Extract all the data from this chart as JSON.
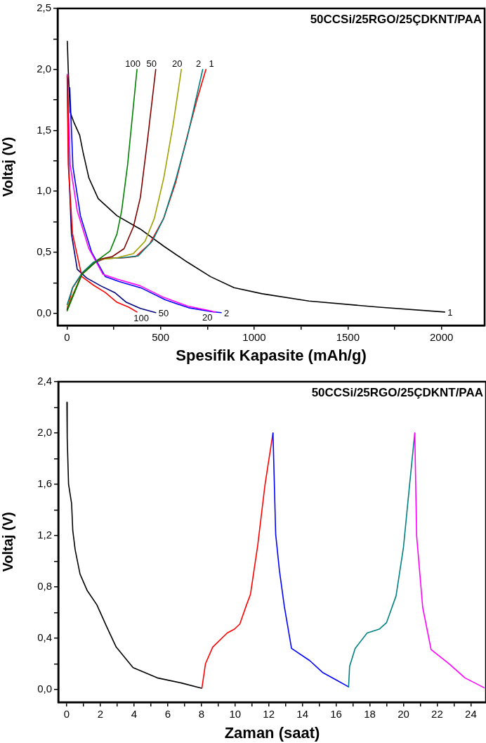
{
  "chart_data": [
    {
      "type": "line",
      "xlabel": "Spesifik Kapasite (mAh/g)",
      "ylabel": "Voltaj (V)",
      "annotations": [
        "50CCSi/25RGO/25ÇDKNT/PAA"
      ],
      "xlim": [
        -50,
        2230
      ],
      "ylim": [
        -0.1,
        2.5
      ],
      "xticks": [
        0,
        {
          "value": 250,
          "label": null
        },
        500,
        {
          "value": 750,
          "label": null
        },
        1000,
        {
          "value": 1250,
          "label": null
        },
        1500,
        {
          "value": 1750,
          "label": null
        },
        2000
      ],
      "yticks": [
        {
          "value": 0,
          "label": "0,0"
        },
        {
          "value": 0.25,
          "label": null
        },
        {
          "value": 0.5,
          "label": "0,5"
        },
        {
          "value": 0.75,
          "label": null
        },
        {
          "value": 1,
          "label": "1,0"
        },
        {
          "value": 1.25,
          "label": null
        },
        {
          "value": 1.5,
          "label": "1,5"
        },
        {
          "value": 1.75,
          "label": null
        },
        {
          "value": 2,
          "label": "2,0"
        },
        {
          "value": 2.25,
          "label": null
        },
        {
          "value": 2.5,
          "label": "2,5"
        }
      ],
      "grid": false,
      "series": [
        {
          "name": "1",
          "color": "#000000",
          "x": [
            2,
            7,
            17,
            36,
            68,
            86,
            117,
            167,
            267,
            392,
            517,
            642,
            767,
            892,
            1042,
            1292,
            1667,
            2017
          ],
          "values": [
            2.23,
            1.99,
            1.65,
            1.57,
            1.46,
            1.32,
            1.11,
            0.94,
            0.8,
            0.69,
            0.55,
            0.42,
            0.3,
            0.21,
            0.16,
            0.1,
            0.05,
            0.01
          ]
        },
        {
          "name": "1",
          "color": "#ff0000",
          "x": [
            1,
            30,
            80,
            142,
            205,
            305,
            367,
            442,
            517,
            580,
            642,
            692,
            742
          ],
          "values": [
            0.03,
            0.21,
            0.32,
            0.41,
            0.45,
            0.455,
            0.465,
            0.57,
            0.78,
            1.07,
            1.45,
            1.74,
            2.0
          ]
        },
        {
          "name": "2",
          "color": "#0000ff",
          "x": [
            15,
            32,
            72,
            132,
            205,
            278,
            400,
            525,
            650,
            775,
            824
          ],
          "values": [
            1.85,
            1.2,
            0.8,
            0.5,
            0.3,
            0.26,
            0.205,
            0.11,
            0.045,
            0.012,
            0.005
          ]
        },
        {
          "name": "2",
          "color": "#008080",
          "x": [
            1,
            30,
            80,
            142,
            205,
            292,
            380,
            455,
            517,
            580,
            642,
            725
          ],
          "values": [
            0.07,
            0.21,
            0.33,
            0.42,
            0.45,
            0.455,
            0.47,
            0.59,
            0.78,
            1.09,
            1.44,
            2.0
          ]
        },
        {
          "name": "20",
          "color": "#ff00ff",
          "x": [
            2,
            17,
            55,
            117,
            192,
            267,
            392,
            517,
            642,
            767,
            792
          ],
          "values": [
            1.96,
            1.22,
            0.84,
            0.53,
            0.32,
            0.28,
            0.225,
            0.13,
            0.06,
            0.02,
            0.01
          ]
        },
        {
          "name": "20",
          "color": "#a0a000",
          "x": [
            1,
            80,
            167,
            267,
            355,
            417,
            467,
            517,
            567,
            611
          ],
          "values": [
            0.05,
            0.32,
            0.44,
            0.455,
            0.49,
            0.59,
            0.78,
            1.11,
            1.55,
            2.0
          ]
        },
        {
          "name": "50",
          "color": "#000080",
          "x": [
            2,
            9,
            24,
            55,
            105,
            180,
            255,
            317,
            392,
            474
          ],
          "values": [
            1.93,
            1.22,
            0.65,
            0.36,
            0.29,
            0.225,
            0.17,
            0.09,
            0.04,
            0.005
          ]
        },
        {
          "name": "50",
          "color": "#800000",
          "x": [
            1,
            80,
            167,
            242,
            305,
            355,
            392,
            430,
            474
          ],
          "values": [
            0.03,
            0.32,
            0.44,
            0.465,
            0.53,
            0.71,
            0.95,
            1.42,
            2.0
          ]
        },
        {
          "name": "100",
          "color": "#ff0000",
          "x": [
            1,
            7,
            30,
            80,
            142,
            205,
            267,
            330,
            374
          ],
          "values": [
            1.95,
            1.22,
            0.65,
            0.3,
            0.23,
            0.17,
            0.09,
            0.05,
            0.01
          ]
        },
        {
          "name": "100",
          "color": "#008000",
          "x": [
            1,
            80,
            167,
            230,
            267,
            292,
            324,
            349,
            374
          ],
          "values": [
            0.02,
            0.32,
            0.44,
            0.51,
            0.65,
            0.84,
            1.22,
            1.61,
            2.0
          ]
        }
      ]
    },
    {
      "type": "line",
      "xlabel": "Zaman (saat)",
      "ylabel": "Voltaj (V)",
      "annotations": [
        "50CCSi/25RGO/25ÇDKNT/PAA"
      ],
      "xlim": [
        -0.5,
        24.9
      ],
      "ylim": [
        -0.1,
        2.4
      ],
      "xticks": [
        0,
        {
          "value": 1,
          "label": null
        },
        2,
        {
          "value": 3,
          "label": null
        },
        4,
        {
          "value": 5,
          "label": null
        },
        6,
        {
          "value": 7,
          "label": null
        },
        8,
        {
          "value": 9,
          "label": null
        },
        10,
        {
          "value": 11,
          "label": null
        },
        12,
        {
          "value": 13,
          "label": null
        },
        14,
        {
          "value": 15,
          "label": null
        },
        16,
        {
          "value": 17,
          "label": null
        },
        18,
        {
          "value": 19,
          "label": null
        },
        20,
        {
          "value": 21,
          "label": null
        },
        22,
        {
          "value": 23,
          "label": null
        },
        24
      ],
      "yticks": [
        {
          "value": 0,
          "label": "0,0"
        },
        {
          "value": 0.2,
          "label": null
        },
        {
          "value": 0.4,
          "label": "0,4"
        },
        {
          "value": 0.6,
          "label": null
        },
        {
          "value": 0.8,
          "label": "0,8"
        },
        {
          "value": 1,
          "label": null
        },
        {
          "value": 1.2,
          "label": "1,2"
        },
        {
          "value": 1.4,
          "label": null
        },
        {
          "value": 1.6,
          "label": "1,6"
        },
        {
          "value": 1.8,
          "label": null
        },
        {
          "value": 2,
          "label": "2,0"
        },
        {
          "value": 2.2,
          "label": null
        },
        {
          "value": 2.4,
          "label": "2,4"
        }
      ],
      "grid": false,
      "series": [
        {
          "color": "#000000",
          "x": [
            0.01,
            0.03,
            0.11,
            0.29,
            0.36,
            0.5,
            0.79,
            1.22,
            1.79,
            2.37,
            2.94,
            3.94,
            5.38,
            6.81,
            8.0
          ],
          "values": [
            2.24,
            1.96,
            1.6,
            1.45,
            1.24,
            1.09,
            0.9,
            0.77,
            0.66,
            0.49,
            0.33,
            0.17,
            0.09,
            0.05,
            0.01
          ]
        },
        {
          "color": "#ff0000",
          "x": [
            8.03,
            8.24,
            8.67,
            9.53,
            9.96,
            10.28,
            10.68,
            10.91,
            11.34,
            11.77,
            12.25
          ],
          "values": [
            0.01,
            0.2,
            0.33,
            0.44,
            0.47,
            0.51,
            0.66,
            0.74,
            1.12,
            1.59,
            2.0
          ]
        },
        {
          "color": "#0000ff",
          "x": [
            12.25,
            12.41,
            12.63,
            12.92,
            13.35,
            14.43,
            15.22,
            16.02,
            16.74
          ],
          "values": [
            2.0,
            1.21,
            0.93,
            0.65,
            0.32,
            0.225,
            0.13,
            0.073,
            0.02
          ]
        },
        {
          "color": "#008080",
          "x": [
            16.74,
            16.8,
            17.13,
            17.84,
            18.56,
            18.99,
            19.56,
            20.0,
            20.35,
            20.67
          ],
          "values": [
            0.02,
            0.18,
            0.32,
            0.44,
            0.47,
            0.52,
            0.73,
            1.11,
            1.58,
            2.0
          ]
        },
        {
          "color": "#ff00ff",
          "x": [
            20.67,
            20.78,
            21.14,
            21.64,
            22.71,
            23.65,
            24.79
          ],
          "values": [
            2.0,
            1.2,
            0.64,
            0.31,
            0.2,
            0.09,
            0.013
          ]
        }
      ]
    }
  ]
}
